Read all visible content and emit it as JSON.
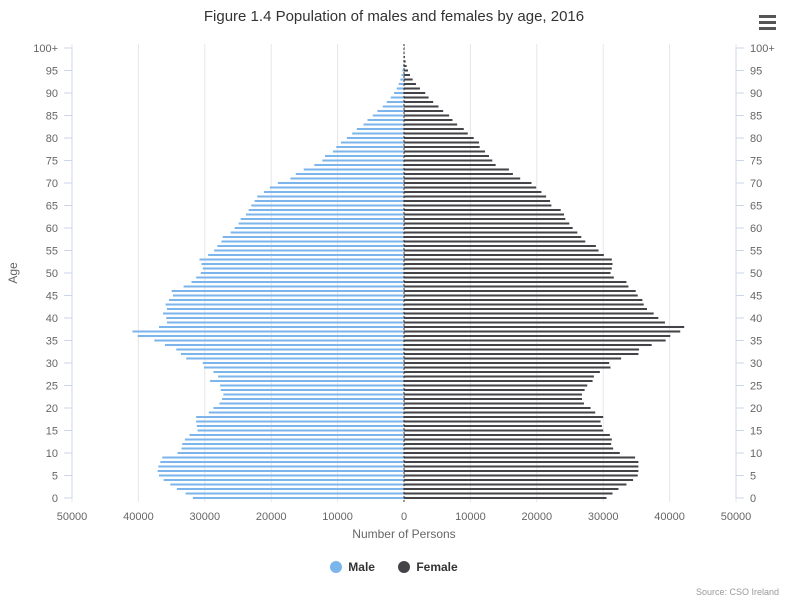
{
  "chart": {
    "title": "Figure 1.4 Population of males and females by age, 2016",
    "credits": "Source: CSO Ireland",
    "menu_icon": "hamburger-menu-icon"
  },
  "chart_data": {
    "type": "bar",
    "orientation": "horizontal",
    "title": "Figure 1.4 Population of males and females by age, 2016",
    "xlabel": "Number of Persons",
    "ylabel": "Age",
    "xlim": [
      -50000,
      50000
    ],
    "x_ticks": [
      -50000,
      -40000,
      -30000,
      -20000,
      -10000,
      0,
      10000,
      20000,
      30000,
      40000,
      50000
    ],
    "x_tick_labels": [
      "50000",
      "40000",
      "30000",
      "20000",
      "10000",
      "0",
      "10000",
      "20000",
      "30000",
      "40000",
      "50000"
    ],
    "y_tick_labels": [
      "0",
      "5",
      "10",
      "15",
      "20",
      "25",
      "30",
      "35",
      "40",
      "45",
      "50",
      "55",
      "60",
      "65",
      "70",
      "75",
      "80",
      "85",
      "90",
      "95",
      "100+"
    ],
    "y_tick_values": [
      0,
      5,
      10,
      15,
      20,
      25,
      30,
      35,
      40,
      45,
      50,
      55,
      60,
      65,
      70,
      75,
      80,
      85,
      90,
      95,
      100
    ],
    "categories": [
      0,
      1,
      2,
      3,
      4,
      5,
      6,
      7,
      8,
      9,
      10,
      11,
      12,
      13,
      14,
      15,
      16,
      17,
      18,
      19,
      20,
      21,
      22,
      23,
      24,
      25,
      26,
      27,
      28,
      29,
      30,
      31,
      32,
      33,
      34,
      35,
      36,
      37,
      38,
      39,
      40,
      41,
      42,
      43,
      44,
      45,
      46,
      47,
      48,
      49,
      50,
      51,
      52,
      53,
      54,
      55,
      56,
      57,
      58,
      59,
      60,
      61,
      62,
      63,
      64,
      65,
      66,
      67,
      68,
      69,
      70,
      71,
      72,
      73,
      74,
      75,
      76,
      77,
      78,
      79,
      80,
      81,
      82,
      83,
      84,
      85,
      86,
      87,
      88,
      89,
      90,
      91,
      92,
      93,
      94,
      95,
      96,
      97,
      98,
      99,
      100
    ],
    "series": [
      {
        "name": "Male",
        "color": "#7cb5ec",
        "values": [
          31800,
          32900,
          34200,
          35200,
          36200,
          36900,
          37100,
          37000,
          36700,
          36400,
          34100,
          33500,
          33400,
          33000,
          32300,
          31100,
          31200,
          31300,
          31300,
          29400,
          28700,
          27800,
          27400,
          27200,
          27600,
          27700,
          29200,
          28000,
          28700,
          30100,
          30300,
          32800,
          33600,
          34300,
          36000,
          37600,
          40100,
          40900,
          36900,
          35700,
          35800,
          36300,
          35700,
          35900,
          35400,
          34800,
          35000,
          33200,
          32000,
          31300,
          30600,
          30300,
          30500,
          30800,
          29500,
          28600,
          28100,
          27500,
          27300,
          26100,
          25500,
          24900,
          24600,
          23800,
          23400,
          23000,
          22500,
          22100,
          21100,
          20200,
          19000,
          17100,
          16300,
          15100,
          13500,
          12300,
          11900,
          10700,
          10200,
          9500,
          8600,
          7800,
          7100,
          6100,
          5500,
          4700,
          4000,
          3200,
          2600,
          2000,
          1500,
          1100,
          800,
          550,
          380,
          250,
          160,
          100,
          60,
          35,
          20
        ]
      },
      {
        "name": "Female",
        "color": "#434348",
        "values": [
          30500,
          31400,
          32300,
          33500,
          34500,
          35200,
          35300,
          35300,
          35300,
          34800,
          32500,
          31500,
          31200,
          31300,
          31000,
          30000,
          29800,
          29600,
          30000,
          28800,
          28100,
          27100,
          26800,
          26800,
          27200,
          27600,
          28400,
          28600,
          29500,
          31100,
          30900,
          32700,
          35300,
          35400,
          37300,
          39400,
          40100,
          41600,
          42200,
          39300,
          38300,
          37600,
          36600,
          36100,
          35900,
          35200,
          34900,
          33800,
          33500,
          31600,
          31100,
          31300,
          31400,
          31300,
          30100,
          29300,
          28900,
          27300,
          26700,
          26100,
          25400,
          24900,
          24300,
          24100,
          23600,
          22200,
          22000,
          21400,
          20700,
          19900,
          19200,
          17500,
          16400,
          15800,
          13800,
          13300,
          12800,
          12200,
          11400,
          11300,
          10500,
          9600,
          9000,
          8000,
          7300,
          6800,
          5900,
          5200,
          4400,
          3700,
          3200,
          2400,
          1800,
          1300,
          900,
          600,
          400,
          250,
          140,
          80,
          70
        ]
      }
    ],
    "legend": {
      "position": "bottom-center",
      "items": [
        "Male",
        "Female"
      ]
    },
    "grid": {
      "x": true,
      "y": false
    },
    "y_axis_opposite_mirrored": true
  }
}
